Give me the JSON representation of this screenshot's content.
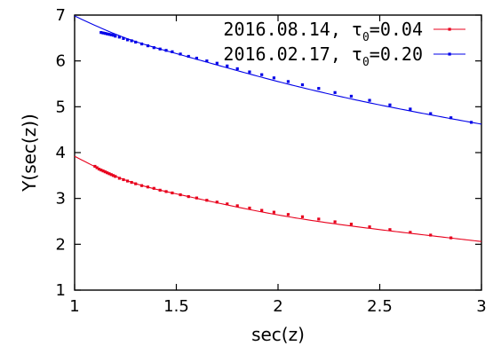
{
  "chart_data": {
    "type": "scatter",
    "title": "",
    "xlabel": "sec(z)",
    "ylabel": "Y(sec(z))",
    "xlim": [
      1,
      3
    ],
    "ylim": [
      1,
      7
    ],
    "x_ticks": [
      "1",
      "1.5",
      "2",
      "2.5",
      "3"
    ],
    "y_ticks": [
      "1",
      "2",
      "3",
      "4",
      "5",
      "6",
      "7"
    ],
    "grid": false,
    "legend_position": "top-right",
    "series": [
      {
        "name": "2016.08.14, τ0=0.04",
        "legend_prefix": "2016.08.14, τ",
        "legend_sub": "0",
        "legend_suffix": "=0.04",
        "color": "#e8001c",
        "points": [
          [
            1.1,
            3.7
          ],
          [
            1.11,
            3.67
          ],
          [
            1.12,
            3.64
          ],
          [
            1.13,
            3.62
          ],
          [
            1.14,
            3.6
          ],
          [
            1.15,
            3.58
          ],
          [
            1.16,
            3.56
          ],
          [
            1.17,
            3.54
          ],
          [
            1.18,
            3.52
          ],
          [
            1.19,
            3.5
          ],
          [
            1.2,
            3.48
          ],
          [
            1.22,
            3.44
          ],
          [
            1.24,
            3.41
          ],
          [
            1.26,
            3.38
          ],
          [
            1.28,
            3.35
          ],
          [
            1.3,
            3.32
          ],
          [
            1.33,
            3.28
          ],
          [
            1.36,
            3.25
          ],
          [
            1.39,
            3.22
          ],
          [
            1.42,
            3.18
          ],
          [
            1.45,
            3.15
          ],
          [
            1.48,
            3.12
          ],
          [
            1.52,
            3.08
          ],
          [
            1.56,
            3.04
          ],
          [
            1.6,
            3.01
          ],
          [
            1.65,
            2.96
          ],
          [
            1.7,
            2.92
          ],
          [
            1.75,
            2.88
          ],
          [
            1.8,
            2.84
          ],
          [
            1.86,
            2.79
          ],
          [
            1.92,
            2.74
          ],
          [
            1.98,
            2.7
          ],
          [
            2.05,
            2.65
          ],
          [
            2.12,
            2.6
          ],
          [
            2.2,
            2.55
          ],
          [
            2.28,
            2.49
          ],
          [
            2.36,
            2.44
          ],
          [
            2.45,
            2.38
          ],
          [
            2.55,
            2.32
          ],
          [
            2.65,
            2.26
          ],
          [
            2.75,
            2.2
          ],
          [
            2.85,
            2.14
          ]
        ],
        "fit": [
          [
            1.0,
            3.92
          ],
          [
            1.25,
            3.4
          ],
          [
            1.5,
            3.1
          ],
          [
            2.0,
            2.64
          ],
          [
            2.5,
            2.32
          ],
          [
            3.0,
            2.06
          ]
        ]
      },
      {
        "name": "2016.02.17, τ0=0.20",
        "legend_prefix": "2016.02.17, τ",
        "legend_sub": "0",
        "legend_suffix": "=0.20",
        "color": "#0000e8",
        "points": [
          [
            1.13,
            6.62
          ],
          [
            1.14,
            6.61
          ],
          [
            1.15,
            6.6
          ],
          [
            1.16,
            6.59
          ],
          [
            1.17,
            6.58
          ],
          [
            1.18,
            6.57
          ],
          [
            1.19,
            6.56
          ],
          [
            1.2,
            6.54
          ],
          [
            1.22,
            6.52
          ],
          [
            1.24,
            6.49
          ],
          [
            1.26,
            6.46
          ],
          [
            1.28,
            6.44
          ],
          [
            1.3,
            6.41
          ],
          [
            1.33,
            6.37
          ],
          [
            1.36,
            6.33
          ],
          [
            1.39,
            6.29
          ],
          [
            1.42,
            6.26
          ],
          [
            1.45,
            6.23
          ],
          [
            1.48,
            6.2
          ],
          [
            1.52,
            6.15
          ],
          [
            1.56,
            6.1
          ],
          [
            1.6,
            6.06
          ],
          [
            1.65,
            6.0
          ],
          [
            1.7,
            5.95
          ],
          [
            1.75,
            5.89
          ],
          [
            1.8,
            5.83
          ],
          [
            1.86,
            5.76
          ],
          [
            1.92,
            5.7
          ],
          [
            1.98,
            5.63
          ],
          [
            2.05,
            5.55
          ],
          [
            2.12,
            5.48
          ],
          [
            2.2,
            5.4
          ],
          [
            2.28,
            5.31
          ],
          [
            2.36,
            5.23
          ],
          [
            2.45,
            5.14
          ],
          [
            2.55,
            5.04
          ],
          [
            2.65,
            4.95
          ],
          [
            2.75,
            4.85
          ],
          [
            2.85,
            4.76
          ],
          [
            2.95,
            4.66
          ]
        ],
        "fit": [
          [
            1.0,
            6.98
          ],
          [
            1.25,
            6.5
          ],
          [
            1.5,
            6.16
          ],
          [
            2.0,
            5.55
          ],
          [
            2.5,
            5.04
          ],
          [
            3.0,
            4.62
          ]
        ]
      }
    ]
  }
}
